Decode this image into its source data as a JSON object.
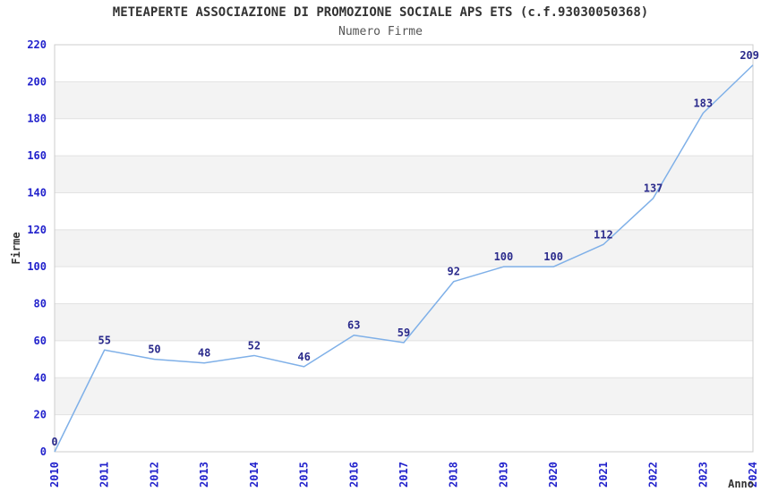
{
  "chart_data": {
    "type": "line",
    "title": "METEAPERTE ASSOCIAZIONE DI PROMOZIONE SOCIALE APS ETS (c.f.93030050368)",
    "subtitle": "Numero Firme",
    "xlabel": "Anno",
    "ylabel": "Firme",
    "categories": [
      "2010",
      "2011",
      "2012",
      "2013",
      "2014",
      "2015",
      "2016",
      "2017",
      "2018",
      "2019",
      "2020",
      "2021",
      "2022",
      "2023",
      "2024"
    ],
    "series": [
      {
        "name": "Numero Firme",
        "values": [
          0,
          55,
          50,
          48,
          52,
          46,
          63,
          59,
          92,
          100,
          100,
          112,
          137,
          183,
          209
        ]
      }
    ],
    "ylim": [
      0,
      220
    ],
    "ytick_step": 20,
    "grid": "horizontal-lines-with-alternating-bands",
    "legend": "none",
    "colors": {
      "line": "#7fb0e8",
      "tick_label": "#2222cc",
      "data_label": "#2b2b8c",
      "band": "#f3f3f3",
      "gridline": "#e2e2e2",
      "border": "#cccccc",
      "title": "#333333",
      "subtitle": "#555555",
      "axis_title": "#333333"
    }
  }
}
